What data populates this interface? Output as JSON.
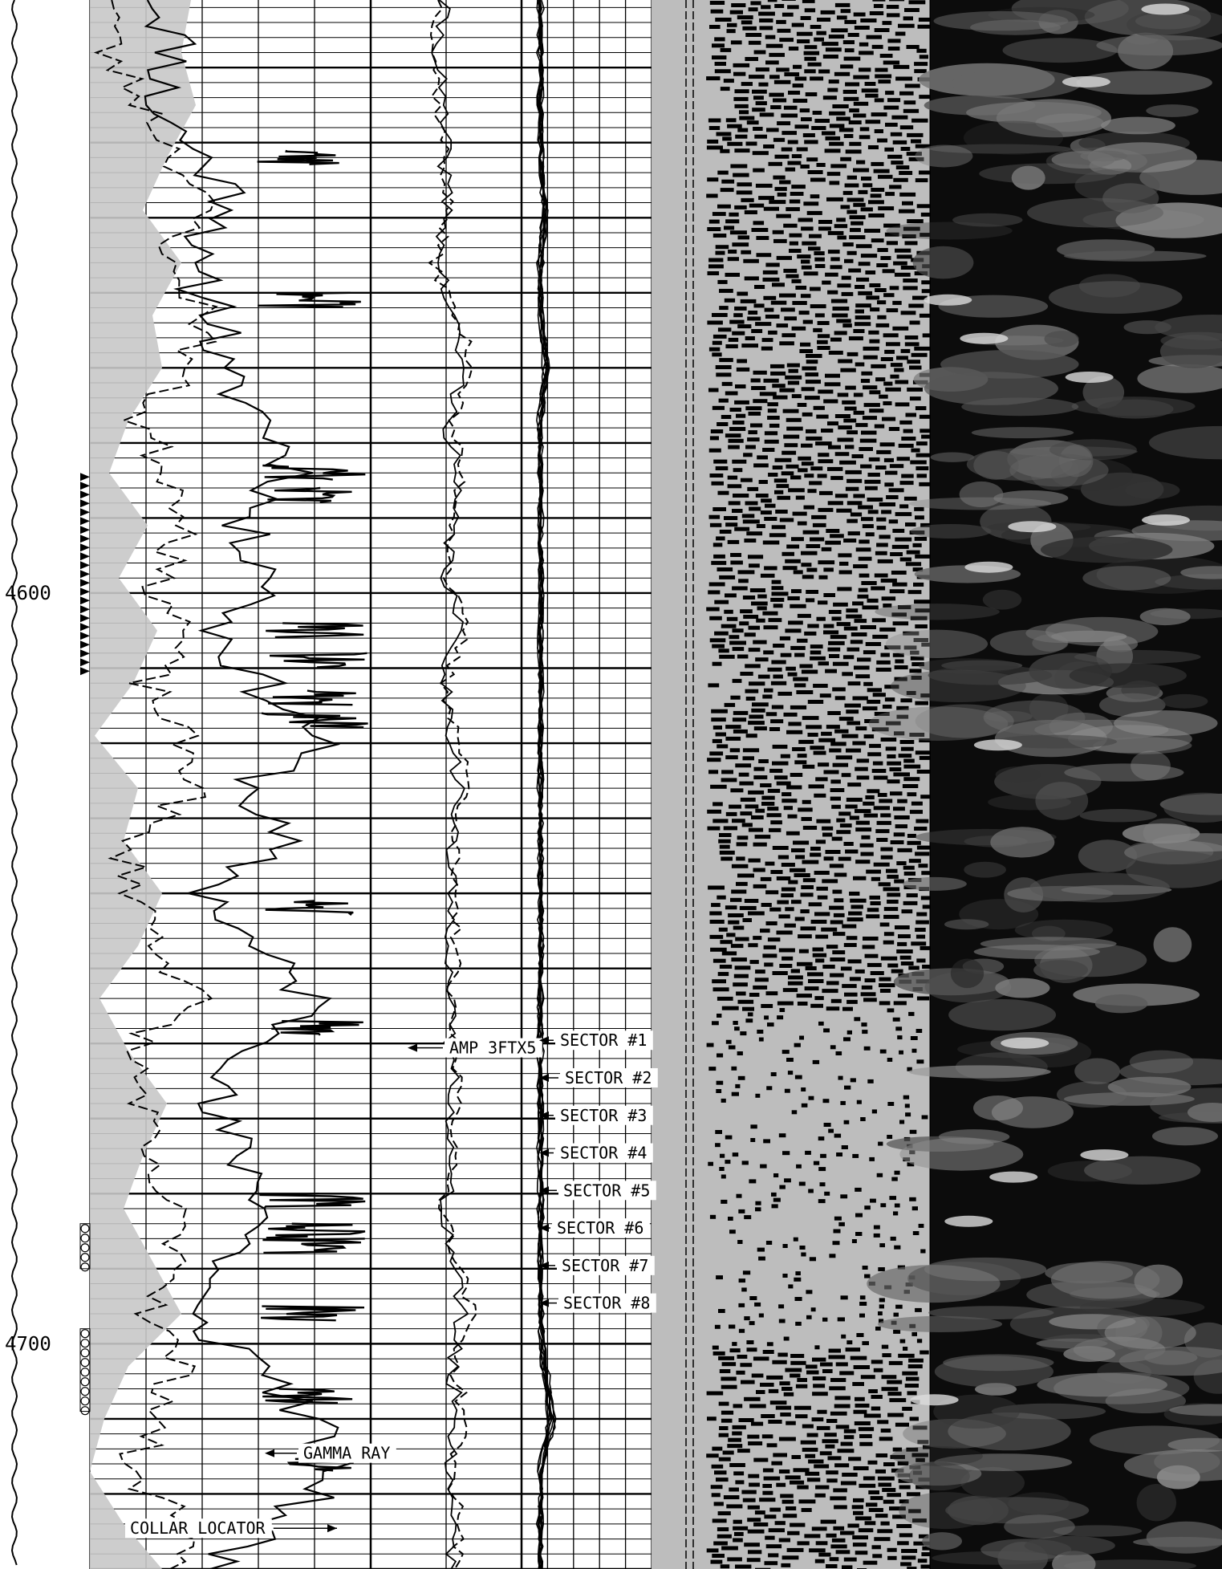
{
  "chart_data": {
    "type": "line",
    "title": "",
    "depth_axis": {
      "range": [
        4521,
        4730
      ],
      "major_step": 10,
      "minor_step": 2,
      "labels": [
        {
          "depth": 4600,
          "text": "4600"
        },
        {
          "depth": 4700,
          "text": "4700"
        }
      ]
    },
    "tracks": [
      {
        "name": "track1",
        "scale": "linear",
        "vertical_lines": 5,
        "content": "gamma ray and collar locator curves with shaded fill"
      },
      {
        "name": "track2",
        "scale": "linear",
        "vertical_lines": 2,
        "content": "amplitude curves, solid and dashed"
      },
      {
        "name": "track3",
        "scale": "linear",
        "vertical_lines": 5,
        "content": "eight sector amplitude curves"
      },
      {
        "name": "vdl",
        "content": "variable density waveform display, black/white"
      },
      {
        "name": "image",
        "content": "grayscale cement map image"
      }
    ],
    "series": [
      {
        "name": "GAMMA RAY",
        "style": "solid",
        "x": [
          18,
          22,
          16,
          28,
          38,
          22,
          34,
          30,
          44,
          52,
          36,
          48,
          32,
          42,
          58,
          40,
          46,
          30,
          40,
          56,
          44,
          28,
          38,
          46,
          34,
          22,
          44,
          54,
          62,
          46,
          30
        ],
        "depth": [
          4521,
          4528,
          4535,
          4542,
          4549,
          4556,
          4563,
          4570,
          4577,
          4584,
          4591,
          4598,
          4605,
          4612,
          4619,
          4626,
          4633,
          4640,
          4647,
          4654,
          4661,
          4668,
          4675,
          4682,
          4689,
          4696,
          4703,
          4710,
          4717,
          4724,
          4730
        ]
      },
      {
        "name": "COLLAR LOCATOR",
        "style": "dashed",
        "x": [
          8,
          4,
          14,
          22,
          28,
          18,
          30,
          24,
          12,
          20,
          26,
          16,
          24,
          14,
          22,
          28,
          8,
          12,
          18,
          26,
          10,
          14,
          12,
          20,
          24,
          16,
          22,
          18,
          8,
          26,
          20
        ],
        "depth": [
          4521,
          4528,
          4535,
          4542,
          4549,
          4556,
          4563,
          4570,
          4577,
          4584,
          4591,
          4598,
          4605,
          4612,
          4619,
          4626,
          4633,
          4640,
          4647,
          4654,
          4661,
          4668,
          4675,
          4682,
          4689,
          4696,
          4703,
          4710,
          4717,
          4724,
          4730
        ]
      },
      {
        "name": "AMP 3FTX5",
        "style": "dashed",
        "x": [
          52,
          48,
          50,
          54,
          56,
          48,
          60,
          72,
          58,
          64,
          60,
          56,
          66,
          54,
          62,
          68,
          60,
          58,
          62,
          56,
          60,
          64,
          58,
          54,
          62,
          70,
          60,
          66,
          58,
          64,
          60
        ],
        "depth": [
          4521,
          4528,
          4535,
          4542,
          4549,
          4556,
          4563,
          4570,
          4577,
          4584,
          4591,
          4598,
          4605,
          4612,
          4619,
          4626,
          4633,
          4640,
          4647,
          4654,
          4661,
          4668,
          4675,
          4682,
          4689,
          4696,
          4703,
          4710,
          4717,
          4724,
          4730
        ]
      },
      {
        "name": "SECTOR #1",
        "style": "solid",
        "x": [
          14,
          16,
          13,
          15,
          18,
          14,
          16,
          20,
          14,
          15,
          13,
          17,
          14,
          16,
          15,
          14,
          13,
          15,
          16,
          14,
          12,
          14,
          16,
          15,
          14,
          13,
          18,
          22,
          15,
          14,
          16
        ],
        "depth": [
          4521,
          4528,
          4535,
          4542,
          4549,
          4556,
          4563,
          4570,
          4577,
          4584,
          4591,
          4598,
          4605,
          4612,
          4619,
          4626,
          4633,
          4640,
          4647,
          4654,
          4661,
          4668,
          4675,
          4682,
          4689,
          4696,
          4703,
          4710,
          4717,
          4724,
          4730
        ]
      },
      {
        "name": "SECTOR #2",
        "style": "solid",
        "x": [
          15,
          14,
          16,
          14,
          20,
          15,
          14,
          18,
          16,
          14,
          15,
          16,
          13,
          15,
          16,
          15,
          14,
          16,
          15,
          13,
          14,
          15,
          14,
          16,
          15,
          14,
          20,
          24,
          16,
          15,
          14
        ],
        "depth": [
          4521,
          4528,
          4535,
          4542,
          4549,
          4556,
          4563,
          4570,
          4577,
          4584,
          4591,
          4598,
          4605,
          4612,
          4619,
          4626,
          4633,
          4640,
          4647,
          4654,
          4661,
          4668,
          4675,
          4682,
          4689,
          4696,
          4703,
          4710,
          4717,
          4724,
          4730
        ]
      },
      {
        "name": "SECTOR #3",
        "style": "solid",
        "x": [
          13,
          15,
          14,
          16,
          17,
          13,
          15,
          22,
          15,
          13,
          14,
          15,
          15,
          14,
          13,
          16,
          15,
          14,
          13,
          15,
          13,
          16,
          15,
          14,
          13,
          15,
          16,
          20,
          14,
          16,
          15
        ],
        "depth": [
          4521,
          4528,
          4535,
          4542,
          4549,
          4556,
          4563,
          4570,
          4577,
          4584,
          4591,
          4598,
          4605,
          4612,
          4619,
          4626,
          4633,
          4640,
          4647,
          4654,
          4661,
          4668,
          4675,
          4682,
          4689,
          4696,
          4703,
          4710,
          4717,
          4724,
          4730
        ]
      },
      {
        "name": "SECTOR #4",
        "style": "solid",
        "x": [
          14,
          13,
          15,
          15,
          19,
          16,
          13,
          19,
          13,
          16,
          16,
          14,
          16,
          13,
          14,
          13,
          16,
          15,
          14,
          16,
          15,
          13,
          14,
          13,
          16,
          14,
          15,
          26,
          16,
          13,
          14
        ],
        "depth": [
          4521,
          4528,
          4535,
          4542,
          4549,
          4556,
          4563,
          4570,
          4577,
          4584,
          4591,
          4598,
          4605,
          4612,
          4619,
          4626,
          4633,
          4640,
          4647,
          4654,
          4661,
          4668,
          4675,
          4682,
          4689,
          4696,
          4703,
          4710,
          4717,
          4724,
          4730
        ]
      },
      {
        "name": "SECTOR #5",
        "style": "solid",
        "x": [
          16,
          15,
          13,
          14,
          16,
          14,
          16,
          21,
          16,
          14,
          13,
          16,
          15,
          16,
          13,
          14,
          15,
          16,
          16,
          14,
          16,
          14,
          13,
          15,
          14,
          16,
          17,
          21,
          13,
          15,
          15
        ],
        "depth": [
          4521,
          4528,
          4535,
          4542,
          4549,
          4556,
          4563,
          4570,
          4577,
          4584,
          4591,
          4598,
          4605,
          4612,
          4619,
          4626,
          4633,
          4640,
          4647,
          4654,
          4661,
          4668,
          4675,
          4682,
          4689,
          4696,
          4703,
          4710,
          4717,
          4724,
          4730
        ]
      },
      {
        "name": "SECTOR #6",
        "style": "solid",
        "x": [
          13,
          14,
          15,
          13,
          18,
          15,
          15,
          17,
          14,
          15,
          16,
          13,
          13,
          15,
          16,
          15,
          14,
          13,
          15,
          15,
          13,
          16,
          15,
          16,
          13,
          15,
          19,
          23,
          15,
          14,
          16
        ],
        "depth": [
          4521,
          4528,
          4535,
          4542,
          4549,
          4556,
          4563,
          4570,
          4577,
          4584,
          4591,
          4598,
          4605,
          4612,
          4619,
          4626,
          4633,
          4640,
          4647,
          4654,
          4661,
          4668,
          4675,
          4682,
          4689,
          4696,
          4703,
          4710,
          4717,
          4724,
          4730
        ]
      },
      {
        "name": "SECTOR #7",
        "style": "solid",
        "x": [
          15,
          16,
          14,
          16,
          17,
          13,
          14,
          20,
          15,
          16,
          14,
          15,
          16,
          14,
          15,
          13,
          16,
          15,
          14,
          16,
          15,
          15,
          16,
          14,
          15,
          13,
          16,
          27,
          14,
          16,
          13
        ],
        "depth": [
          4521,
          4528,
          4535,
          4542,
          4549,
          4556,
          4563,
          4570,
          4577,
          4584,
          4591,
          4598,
          4605,
          4612,
          4619,
          4626,
          4633,
          4640,
          4647,
          4654,
          4661,
          4668,
          4675,
          4682,
          4689,
          4696,
          4703,
          4710,
          4717,
          4724,
          4730
        ]
      },
      {
        "name": "SECTOR #8",
        "style": "solid",
        "x": [
          14,
          15,
          16,
          15,
          19,
          16,
          16,
          18,
          13,
          14,
          15,
          16,
          14,
          16,
          14,
          16,
          13,
          14,
          16,
          13,
          14,
          13,
          15,
          16,
          14,
          16,
          18,
          22,
          16,
          13,
          15
        ],
        "depth": [
          4521,
          4528,
          4535,
          4542,
          4549,
          4556,
          4563,
          4570,
          4577,
          4584,
          4591,
          4598,
          4605,
          4612,
          4619,
          4626,
          4633,
          4640,
          4647,
          4654,
          4661,
          4668,
          4675,
          4682,
          4689,
          4696,
          4703,
          4710,
          4717,
          4724,
          4730
        ]
      }
    ],
    "annotations": [
      {
        "text": "AMP 3FTX5",
        "depth": 4661
      },
      {
        "text": "SECTOR #1",
        "depth": 4660
      },
      {
        "text": "SECTOR #2",
        "depth": 4665
      },
      {
        "text": "SECTOR #3",
        "depth": 4670
      },
      {
        "text": "SECTOR #4",
        "depth": 4675
      },
      {
        "text": "SECTOR #5",
        "depth": 4680
      },
      {
        "text": "SECTOR #6",
        "depth": 4685
      },
      {
        "text": "SECTOR #7",
        "depth": 4690
      },
      {
        "text": "SECTOR #8",
        "depth": 4695
      },
      {
        "text": "GAMMA RAY",
        "depth": 4715
      },
      {
        "text": "COLLAR LOCATOR",
        "depth": 4725
      }
    ],
    "markers": [
      {
        "type": "triangles",
        "from_depth": 4584,
        "to_depth": 4610
      },
      {
        "type": "circles",
        "from_depth": 4684,
        "to_depth": 4690
      },
      {
        "type": "circles",
        "from_depth": 4698,
        "to_depth": 4709
      }
    ],
    "colors": {
      "ink": "#000000",
      "fill": "#c8c8c8",
      "paper": "#ffffff",
      "vdl_gray": "#bdbdbd",
      "image_dark": "#0c0c0c"
    },
    "grid": true
  }
}
